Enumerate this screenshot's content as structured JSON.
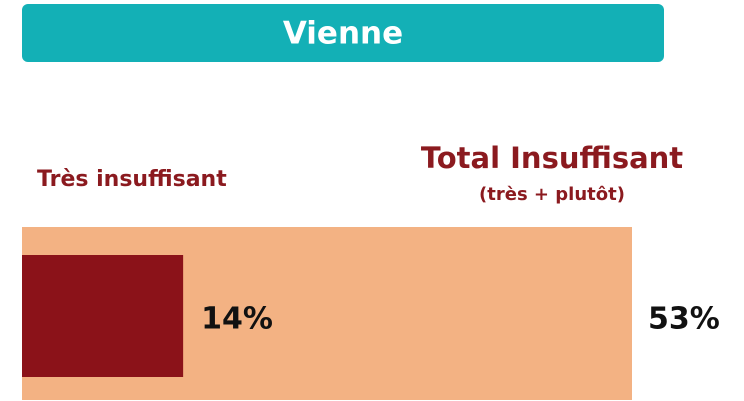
{
  "chart_data": {
    "type": "bar",
    "title": "Vienne",
    "series": [
      {
        "name": "Total Insuffisant",
        "description": "(très + plutôt)",
        "color": "#f3b283",
        "values": [
          53
        ],
        "value_labels": [
          "53%"
        ]
      },
      {
        "name": "Très insuffisant",
        "color": "#8b1219",
        "values": [
          14
        ],
        "value_labels": [
          "14%"
        ]
      }
    ]
  }
}
